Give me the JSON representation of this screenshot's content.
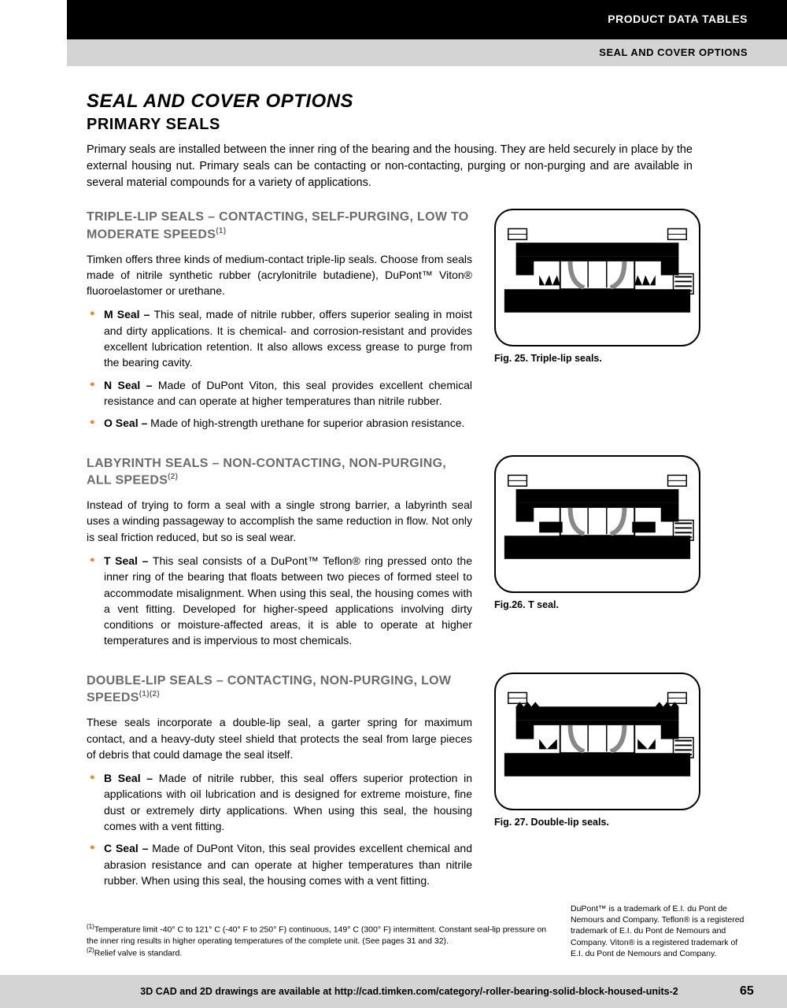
{
  "header": {
    "black": "PRODUCT DATA TABLES",
    "gray": "SEAL AND COVER OPTIONS"
  },
  "title": "SEAL AND COVER OPTIONS",
  "subtitle": "PRIMARY SEALS",
  "intro": "Primary seals are installed between the inner ring of the bearing and the housing. They are held securely in place by the external housing nut. Primary seals can be contacting or non-contacting, purging or non-purging and are available in several material compounds for a variety of applications.",
  "sections": [
    {
      "title_html": "TRIPLE-LIP SEALS – CONTACTING, SELF-PURGING, LOW TO MODERATE SPEEDS<sup>(1)</sup>",
      "body": "Timken offers three kinds of medium-contact triple-lip seals. Choose from seals made of nitrile synthetic rubber (acrylonitrile butadiene), DuPont™ Viton® fluoroelastomer or urethane.",
      "items": [
        {
          "label": "M Seal –",
          "text": "This seal, made of nitrile rubber, offers superior sealing in moist and dirty applications. It is chemical- and corrosion-resistant and provides excellent lubrication retention. It also allows excess grease to purge from the bearing cavity."
        },
        {
          "label": "N Seal –",
          "text": "Made of DuPont Viton, this seal provides excellent chemical resistance and can operate at higher temperatures than nitrile rubber."
        },
        {
          "label": "O Seal –",
          "text": "Made of high-strength urethane for superior abrasion resistance."
        }
      ],
      "caption": "Fig. 25. Triple-lip seals.",
      "svg": "seal1"
    },
    {
      "title_html": "LABYRINTH SEALS – NON-CONTACTING, NON-PURGING, ALL SPEEDS<sup>(2)</sup>",
      "body": "Instead of trying to form a seal with a single strong barrier, a labyrinth seal uses a winding passageway to accomplish the same reduction in flow. Not only is seal friction reduced, but so is seal wear.",
      "items": [
        {
          "label": "T Seal –",
          "text": "This seal consists of a DuPont™ Teflon® ring pressed onto the inner ring of the bearing that floats between two pieces of formed steel to accommodate misalignment. When using this seal, the housing comes with a vent fitting. Developed for higher-speed applications involving dirty conditions or moisture-affected areas, it is able to operate at higher temperatures and is impervious to most chemicals."
        }
      ],
      "caption": "Fig.26. T seal.",
      "svg": "seal2"
    },
    {
      "title_html": "DOUBLE-LIP SEALS – CONTACTING, NON-PURGING, LOW SPEEDS<sup>(1)(2)</sup>",
      "body": "These seals incorporate a double-lip seal, a garter spring for maximum contact, and a heavy-duty steel shield that protects the seal from large pieces of debris that could damage the seal itself.",
      "items": [
        {
          "label": "B Seal –",
          "text": "Made of nitrile rubber, this seal offers superior protection in applications with oil lubrication and is designed for extreme moisture, fine dust or extremely dirty applications. When using this seal, the housing comes with a vent fitting."
        },
        {
          "label": "C Seal –",
          "text": "Made of DuPont Viton, this seal provides excellent chemical and abrasion resistance and can operate at higher temperatures than nitrile rubber. When using this seal, the housing comes with a vent fitting."
        }
      ],
      "caption": "Fig. 27. Double-lip seals.",
      "svg": "seal3"
    }
  ],
  "footnotes_html": "<sup>(1)</sup>Temperature limit -40° C to 121° C (-40° F to 250° F) continuous, 149° C (300° F) intermittent. Constant seal-lip pressure on the inner ring results in higher operating temperatures of the complete unit. (See pages 31 and 32).<br><sup>(2)</sup>Relief valve is standard.",
  "trademark": "DuPont™ is a trademark of E.I. du Pont de Nemours and Company. Teflon® is a registered trademark of E.I. du Pont de Nemours and Company. Viton® is a registered trademark of E.I. du Pont de Nemours and Company.",
  "footer": "3D CAD and 2D drawings are available at http://cad.timken.com/category/-roller-bearing-solid-block-housed-units-2",
  "page_num": "65",
  "colors": {
    "accent": "#f58220",
    "gray_title": "#6b6b6b",
    "header_gray_bg": "#d4d4d4"
  }
}
